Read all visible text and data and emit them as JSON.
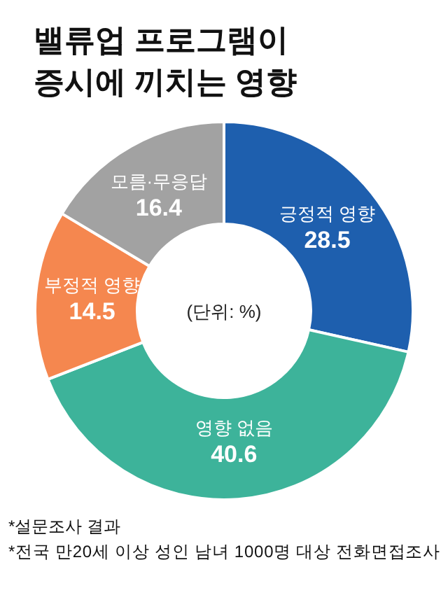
{
  "chart_data": {
    "type": "donut",
    "title": "밸류업 프로그램이\n증시에 끼치는 영향",
    "categories": [
      "긍정적 영향",
      "영향 없음",
      "부정적 영향",
      "모름·무응답"
    ],
    "values": [
      28.5,
      40.6,
      14.5,
      16.4
    ],
    "colors": [
      "#1e5fae",
      "#3db39a",
      "#f5874f",
      "#a2a2a2"
    ],
    "data_labels": true,
    "annotations": [
      "(단위: %)",
      "*설문조사 결과",
      "*전국 만20세 이상 성인 남녀 1000명 대상 전화면접조사"
    ]
  }
}
